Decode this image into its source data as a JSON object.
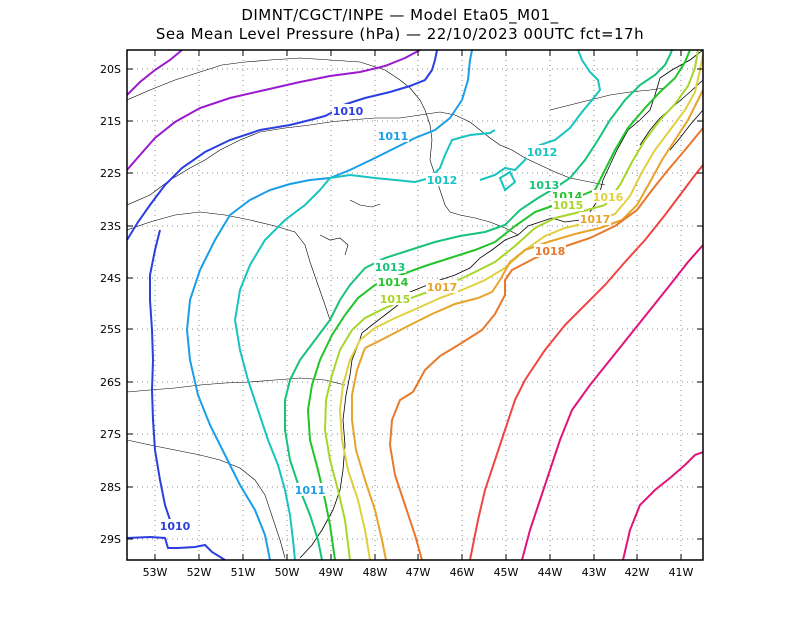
{
  "title": {
    "line1": "DIMNT/CGCT/INPE —  Model Eta05_M01_",
    "line2": "Sea Mean Level Pressure (hPa) — 22/10/2023 00UTC fct=17h"
  },
  "axes": {
    "lat_labels": [
      "20S",
      "21S",
      "22S",
      "23S",
      "24S",
      "25S",
      "26S",
      "27S",
      "28S",
      "29S"
    ],
    "lon_labels": [
      "53W",
      "52W",
      "51W",
      "50W",
      "49W",
      "48W",
      "47W",
      "46W",
      "45W",
      "44W",
      "43W",
      "42W",
      "41W"
    ]
  },
  "contours": [
    {
      "level": 1010,
      "label": "1010",
      "color": "#2b3fe0"
    },
    {
      "level": 1011,
      "label": "1011",
      "color": "#1a9ee8"
    },
    {
      "level": 1012,
      "label": "1012",
      "color": "#17c4c0"
    },
    {
      "level": 1013,
      "label": "1013",
      "color": "#17c27a"
    },
    {
      "level": 1014,
      "label": "1014",
      "color": "#22c42a"
    },
    {
      "level": 1015,
      "label": "1015",
      "color": "#a7d62a"
    },
    {
      "level": 1016,
      "label": "1016",
      "color": "#e0d040"
    },
    {
      "level": 1017,
      "label": "1017",
      "color": "#e8a32a"
    },
    {
      "level": 1018,
      "label": "1018",
      "color": "#e8782a"
    }
  ],
  "extra_colors": {
    "purple": "#9a1ad0",
    "red": "#f04545",
    "magenta": "#e0147a",
    "coast": "#000000",
    "grid": "#888888"
  }
}
